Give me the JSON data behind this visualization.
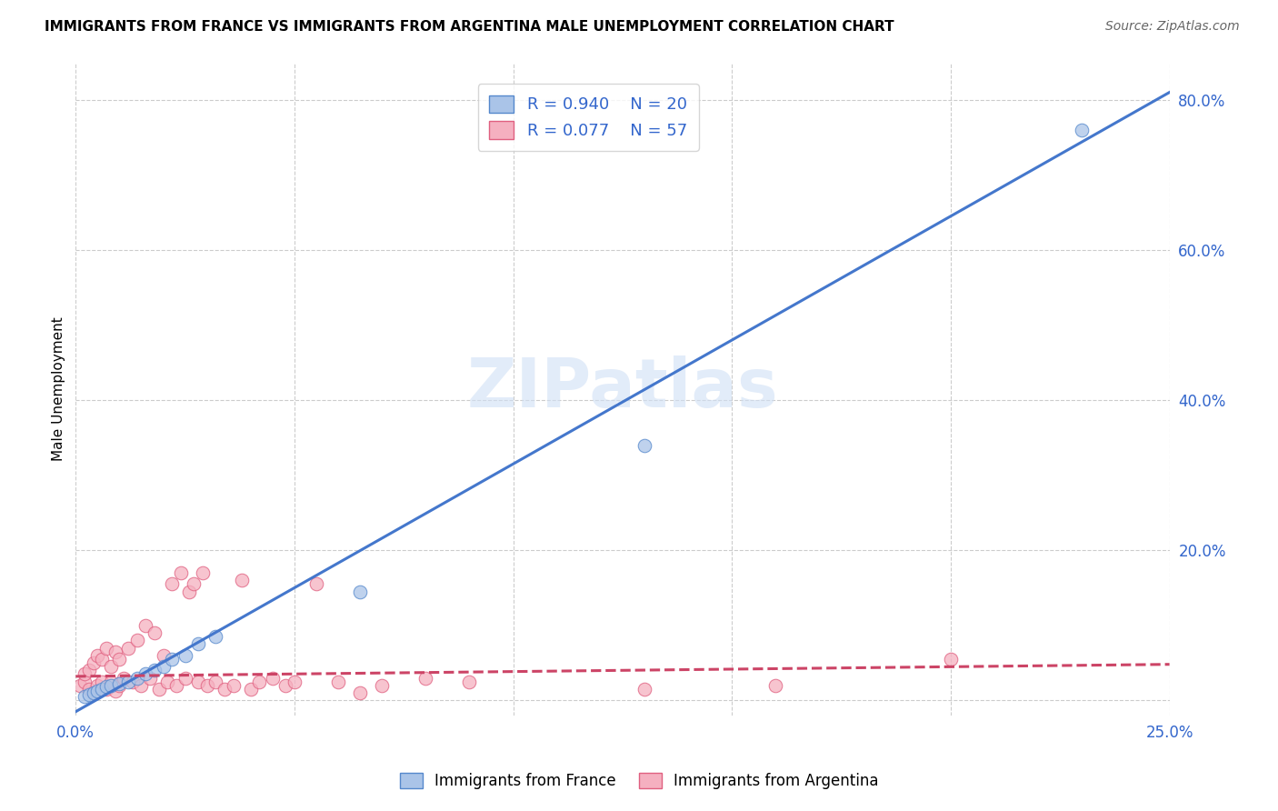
{
  "title": "IMMIGRANTS FROM FRANCE VS IMMIGRANTS FROM ARGENTINA MALE UNEMPLOYMENT CORRELATION CHART",
  "source": "Source: ZipAtlas.com",
  "ylabel": "Male Unemployment",
  "xlim": [
    0.0,
    0.25
  ],
  "ylim": [
    -0.02,
    0.85
  ],
  "x_ticks": [
    0.0,
    0.05,
    0.1,
    0.15,
    0.2,
    0.25
  ],
  "x_tick_labels": [
    "0.0%",
    "",
    "",
    "",
    "",
    "25.0%"
  ],
  "y_ticks_right": [
    0.2,
    0.4,
    0.6,
    0.8
  ],
  "y_tick_labels_right": [
    "20.0%",
    "40.0%",
    "60.0%",
    "80.0%"
  ],
  "france_R": 0.94,
  "france_N": 20,
  "argentina_R": 0.077,
  "argentina_N": 57,
  "france_color": "#aac4e8",
  "argentina_color": "#f5b0c0",
  "france_edge_color": "#5588cc",
  "argentina_edge_color": "#e06080",
  "france_line_color": "#4477cc",
  "argentina_line_color": "#cc4466",
  "watermark": "ZIPatlas",
  "france_scatter_x": [
    0.002,
    0.003,
    0.004,
    0.005,
    0.006,
    0.007,
    0.008,
    0.01,
    0.012,
    0.014,
    0.016,
    0.018,
    0.02,
    0.022,
    0.025,
    0.028,
    0.032,
    0.065,
    0.13,
    0.23
  ],
  "france_scatter_y": [
    0.005,
    0.008,
    0.01,
    0.012,
    0.015,
    0.018,
    0.02,
    0.022,
    0.025,
    0.03,
    0.035,
    0.04,
    0.045,
    0.055,
    0.06,
    0.075,
    0.085,
    0.145,
    0.34,
    0.76
  ],
  "argentina_scatter_x": [
    0.001,
    0.002,
    0.002,
    0.003,
    0.003,
    0.004,
    0.004,
    0.005,
    0.005,
    0.006,
    0.006,
    0.007,
    0.007,
    0.008,
    0.008,
    0.009,
    0.009,
    0.01,
    0.01,
    0.011,
    0.012,
    0.013,
    0.014,
    0.015,
    0.016,
    0.017,
    0.018,
    0.019,
    0.02,
    0.021,
    0.022,
    0.023,
    0.024,
    0.025,
    0.026,
    0.027,
    0.028,
    0.029,
    0.03,
    0.032,
    0.034,
    0.036,
    0.038,
    0.04,
    0.042,
    0.045,
    0.048,
    0.05,
    0.055,
    0.06,
    0.065,
    0.07,
    0.08,
    0.09,
    0.13,
    0.16,
    0.2
  ],
  "argentina_scatter_y": [
    0.02,
    0.025,
    0.035,
    0.015,
    0.04,
    0.01,
    0.05,
    0.02,
    0.06,
    0.025,
    0.055,
    0.015,
    0.07,
    0.025,
    0.045,
    0.012,
    0.065,
    0.02,
    0.055,
    0.03,
    0.07,
    0.025,
    0.08,
    0.02,
    0.1,
    0.03,
    0.09,
    0.015,
    0.06,
    0.025,
    0.155,
    0.02,
    0.17,
    0.03,
    0.145,
    0.155,
    0.025,
    0.17,
    0.02,
    0.025,
    0.015,
    0.02,
    0.16,
    0.015,
    0.025,
    0.03,
    0.02,
    0.025,
    0.155,
    0.025,
    0.01,
    0.02,
    0.03,
    0.025,
    0.015,
    0.02,
    0.055
  ],
  "france_line_x0": 0.0,
  "france_line_y0": -0.015,
  "france_line_x1": 0.25,
  "france_line_y1": 0.81,
  "argentina_line_x0": 0.0,
  "argentina_line_y0": 0.032,
  "argentina_line_x1": 0.25,
  "argentina_line_y1": 0.048
}
